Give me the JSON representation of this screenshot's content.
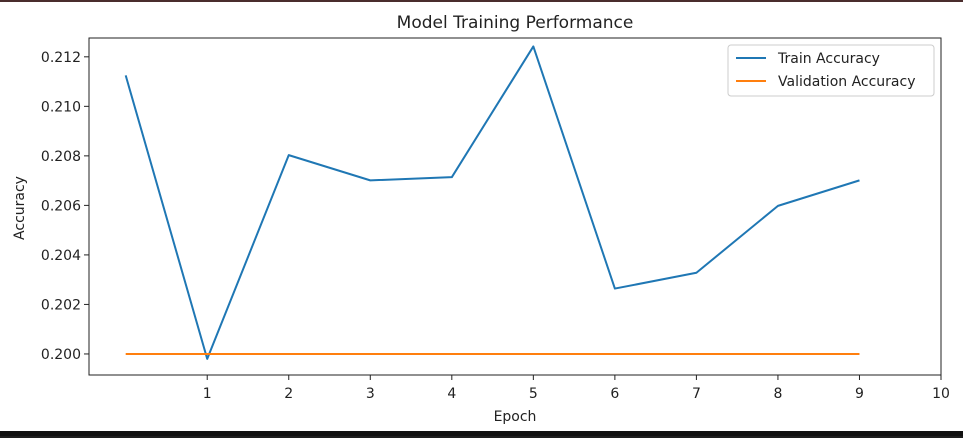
{
  "chart_data": {
    "type": "line",
    "title": "Model Training Performance",
    "xlabel": "Epoch",
    "ylabel": "Accuracy",
    "x": [
      0,
      1,
      2,
      3,
      4,
      5,
      6,
      7,
      8,
      9
    ],
    "xlim": [
      -0.45,
      10
    ],
    "ylim": [
      0.19915,
      0.21276
    ],
    "xticks": [
      1,
      2,
      3,
      4,
      5,
      6,
      7,
      8,
      9,
      10
    ],
    "yticks": [
      0.2,
      0.202,
      0.204,
      0.206,
      0.208,
      0.21,
      0.212
    ],
    "ytick_labels": [
      "0.200",
      "0.202",
      "0.204",
      "0.206",
      "0.208",
      "0.210",
      "0.212"
    ],
    "grid": false,
    "legend": {
      "position": "top-right"
    },
    "series": [
      {
        "name": "Train Accuracy",
        "color": "#1f77b4",
        "values": [
          0.21125,
          0.1998,
          0.20803,
          0.20701,
          0.20714,
          0.21242,
          0.20264,
          0.20328,
          0.20598,
          0.20701
        ]
      },
      {
        "name": "Validation Accuracy",
        "color": "#ff7f0e",
        "values": [
          0.2,
          0.2,
          0.2,
          0.2,
          0.2,
          0.2,
          0.2,
          0.2,
          0.2,
          0.2
        ]
      }
    ]
  }
}
